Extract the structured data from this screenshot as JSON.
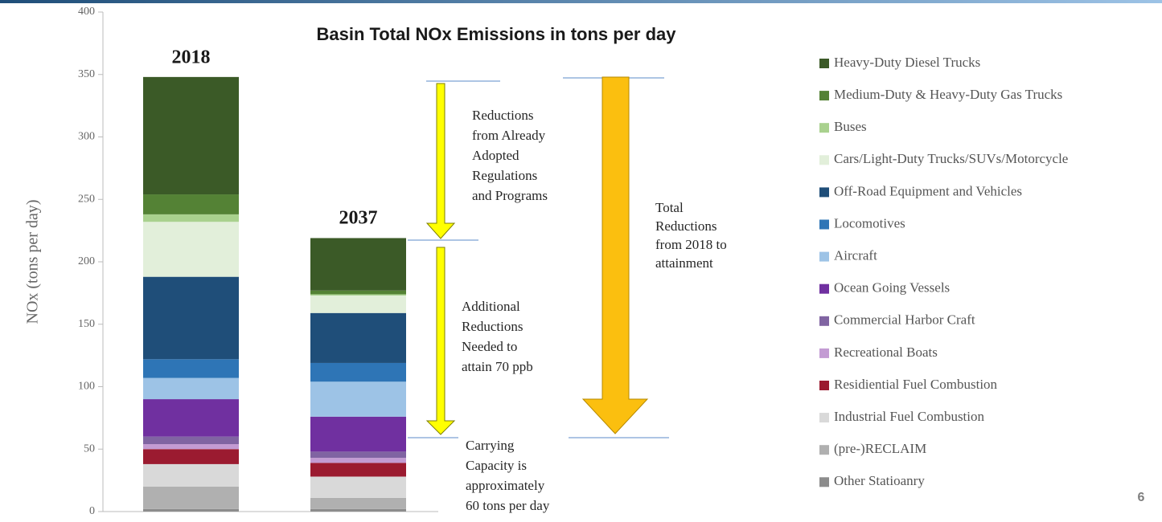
{
  "chart_data": {
    "type": "stacked-bar",
    "title": "Basin Total NOx Emissions in tons per day",
    "y_label": "NOx (tons per day)",
    "categories": [
      "2018",
      "2037"
    ],
    "ylim": [
      0,
      400
    ],
    "yticks": [
      0,
      50,
      100,
      150,
      200,
      250,
      300,
      350,
      400
    ],
    "series": [
      {
        "name": "Heavy-Duty Diesel Trucks",
        "color": "#3b5a27",
        "values": [
          94,
          42
        ]
      },
      {
        "name": "Medium-Duty & Heavy-Duty Gas Trucks",
        "color": "#548235",
        "values": [
          16,
          3
        ]
      },
      {
        "name": "Buses",
        "color": "#a9d18e",
        "values": [
          6,
          1
        ]
      },
      {
        "name": "Cars/Light-Duty Trucks/SUVs/Motorcycle",
        "color": "#e2efda",
        "values": [
          44,
          14
        ]
      },
      {
        "name": "Off-Road Equipment and Vehicles",
        "color": "#1f4e79",
        "values": [
          66,
          40
        ]
      },
      {
        "name": "Locomotives",
        "color": "#2e75b6",
        "values": [
          15,
          15
        ]
      },
      {
        "name": "Aircraft",
        "color": "#9dc3e6",
        "values": [
          17,
          28
        ]
      },
      {
        "name": "Ocean Going Vessels",
        "color": "#7030a0",
        "values": [
          30,
          28
        ]
      },
      {
        "name": "Commercial Harbor Craft",
        "color": "#8064a2",
        "values": [
          6,
          5
        ]
      },
      {
        "name": "Recreational Boats",
        "color": "#c39bd3",
        "values": [
          4,
          4
        ]
      },
      {
        "name": "Residiential Fuel Combustion",
        "color": "#9b1b30",
        "values": [
          12,
          11
        ]
      },
      {
        "name": "Industrial Fuel Combustion",
        "color": "#d9d9d9",
        "values": [
          18,
          17
        ]
      },
      {
        "name": "(pre-)RECLAIM",
        "color": "#b0b0b0",
        "values": [
          18,
          9
        ]
      },
      {
        "name": "Other Statioanry",
        "color": "#8c8c8c",
        "values": [
          2,
          2
        ]
      }
    ],
    "annotations": [
      {
        "lines": [
          "Reductions",
          "from Already",
          "Adopted",
          "Regulations",
          "and Programs"
        ]
      },
      {
        "lines": [
          "Additional",
          "Reductions",
          "Needed to",
          "attain 70 ppb"
        ]
      },
      {
        "lines": [
          "Carrying",
          "Capacity is",
          "approximately",
          "60 tons per day"
        ]
      },
      {
        "lines": [
          "Total",
          "Reductions",
          "from 2018 to",
          "attainment"
        ]
      }
    ]
  },
  "page_number": "6"
}
